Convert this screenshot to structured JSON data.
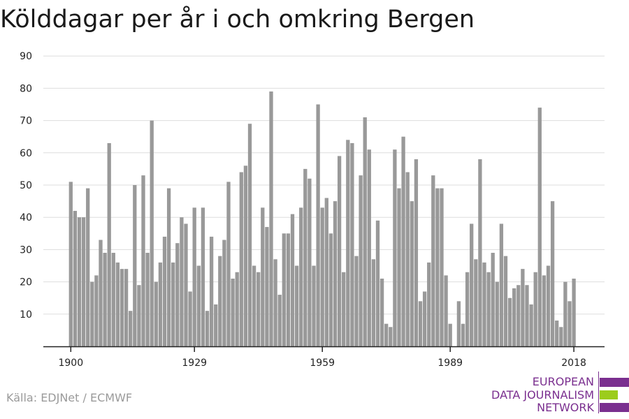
{
  "title": "Kölddagar per år i och omkring Bergen",
  "source": "Källa: EDJNet / ECMWF",
  "logo": {
    "lines": [
      "EUROPEAN",
      "DATA JOURNALISM",
      "NETWORK"
    ],
    "colors": {
      "purple": "#7a2f8f",
      "green": "#9ccc1c"
    }
  },
  "colors": {
    "bar": "#999999",
    "grid": "#dddddd",
    "axis": "#222222"
  },
  "chart_data": {
    "type": "bar",
    "title": "Kölddagar per år i och omkring Bergen",
    "xlabel": "",
    "ylabel": "",
    "ylim": [
      0,
      90
    ],
    "yticks": [
      10,
      20,
      30,
      40,
      50,
      60,
      70,
      80,
      90
    ],
    "xticks": [
      1900,
      1929,
      1959,
      1989,
      2018
    ],
    "grid": true,
    "x": [
      1900,
      1901,
      1902,
      1903,
      1904,
      1905,
      1906,
      1907,
      1908,
      1909,
      1910,
      1911,
      1912,
      1913,
      1914,
      1915,
      1916,
      1917,
      1918,
      1919,
      1920,
      1921,
      1922,
      1923,
      1924,
      1925,
      1926,
      1927,
      1928,
      1929,
      1930,
      1931,
      1932,
      1933,
      1934,
      1935,
      1936,
      1937,
      1938,
      1939,
      1940,
      1941,
      1942,
      1943,
      1944,
      1945,
      1946,
      1947,
      1948,
      1949,
      1950,
      1951,
      1952,
      1953,
      1954,
      1955,
      1956,
      1957,
      1958,
      1959,
      1960,
      1961,
      1962,
      1963,
      1964,
      1965,
      1966,
      1967,
      1968,
      1969,
      1970,
      1971,
      1972,
      1973,
      1974,
      1975,
      1976,
      1977,
      1978,
      1979,
      1980,
      1981,
      1982,
      1983,
      1984,
      1985,
      1986,
      1987,
      1988,
      1989,
      1990,
      1991,
      1992,
      1993,
      1994,
      1995,
      1996,
      1997,
      1998,
      1999,
      2000,
      2001,
      2002,
      2003,
      2004,
      2005,
      2006,
      2007,
      2008,
      2009,
      2010,
      2011,
      2012,
      2013,
      2014,
      2015,
      2016,
      2017,
      2018
    ],
    "values": [
      51,
      42,
      40,
      40,
      49,
      20,
      22,
      33,
      29,
      63,
      29,
      26,
      24,
      24,
      11,
      50,
      19,
      53,
      29,
      70,
      20,
      26,
      34,
      49,
      26,
      32,
      40,
      38,
      17,
      43,
      25,
      43,
      11,
      34,
      13,
      28,
      33,
      51,
      21,
      23,
      54,
      56,
      69,
      25,
      23,
      43,
      37,
      79,
      27,
      16,
      35,
      35,
      41,
      25,
      43,
      55,
      52,
      25,
      75,
      43,
      46,
      35,
      45,
      59,
      23,
      64,
      63,
      28,
      53,
      71,
      61,
      27,
      39,
      21,
      7,
      6,
      61,
      49,
      65,
      54,
      45,
      58,
      14,
      17,
      26,
      53,
      49,
      49,
      22,
      7,
      0,
      14,
      7,
      23,
      38,
      27,
      58,
      26,
      23,
      29,
      20,
      38,
      28,
      15,
      18,
      19,
      24,
      19,
      13,
      23,
      74,
      22,
      25,
      45,
      8,
      6,
      20,
      14,
      21
    ]
  }
}
